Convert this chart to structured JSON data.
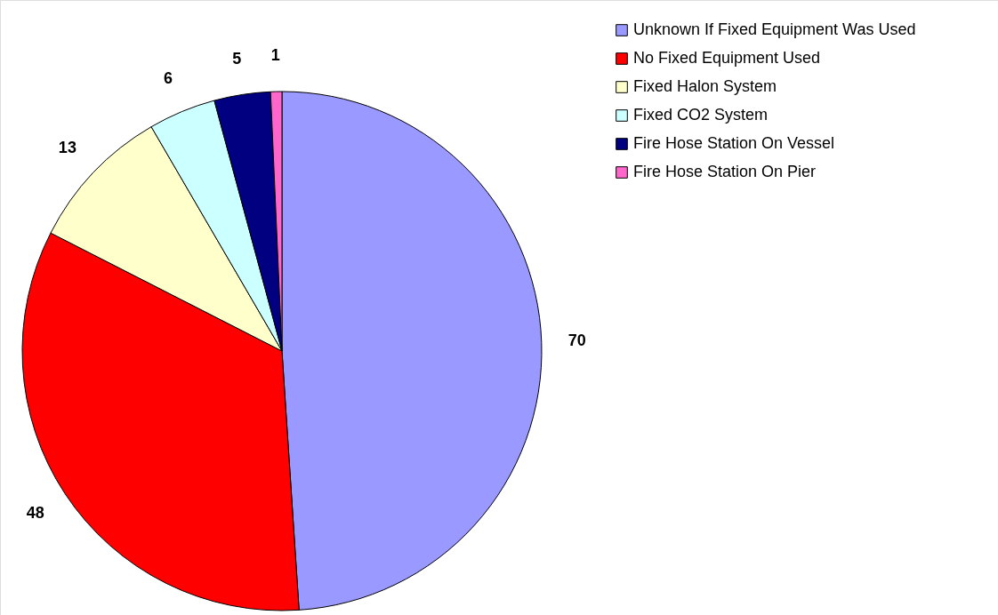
{
  "chart_data": {
    "type": "pie",
    "categories": [
      "Unknown If Fixed Equipment Was Used",
      "No Fixed Equipment Used",
      "Fixed Halon System",
      "Fixed CO2 System",
      "Fire Hose Station On Vessel",
      "Fire Hose Station On Pier"
    ],
    "values": [
      70,
      48,
      13,
      6,
      5,
      1
    ],
    "colors": [
      "#9999ff",
      "#ff0000",
      "#ffffcc",
      "#ccffff",
      "#000080",
      "#ff66cc"
    ],
    "data_labels": true,
    "legend": "top right"
  }
}
